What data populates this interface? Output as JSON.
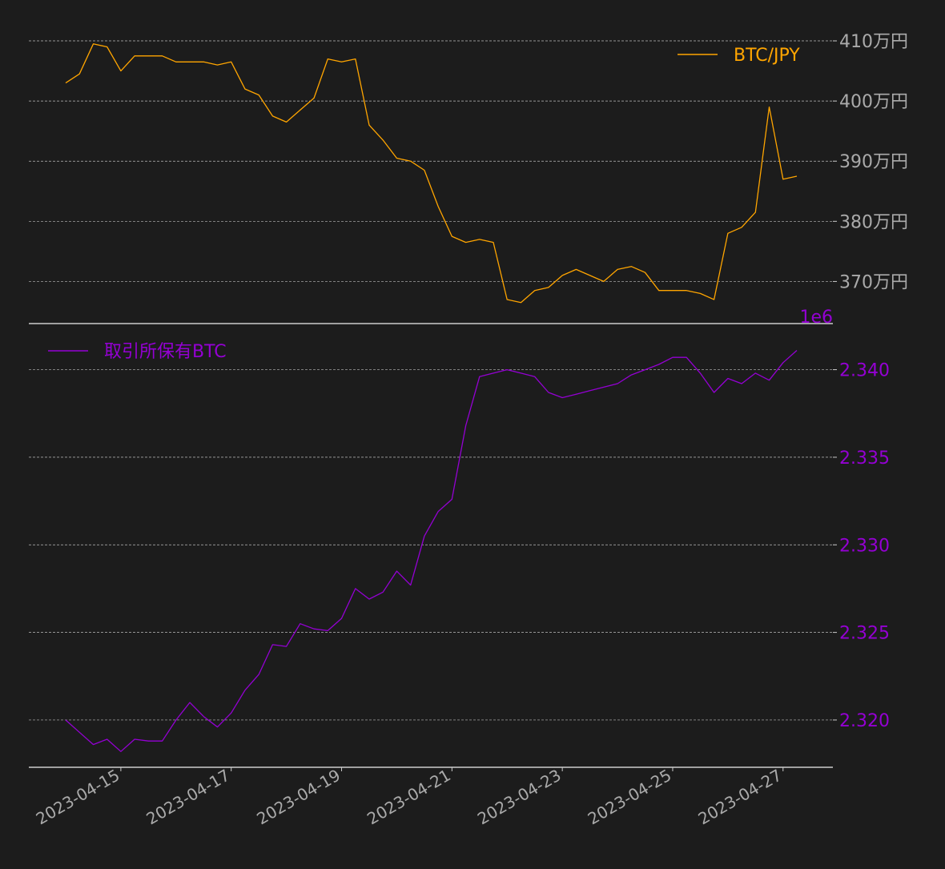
{
  "colors": {
    "background": "#1c1c1c",
    "btc_price": "#ffa500",
    "btc_holdings": "#9400d3",
    "grid": "#bbbbbb",
    "axis": "#cccccc",
    "tick_text": "#aaaaaa"
  },
  "chart_data": [
    {
      "type": "line",
      "legend": {
        "label": "BTC/JPY",
        "position": "top-right"
      },
      "grid": true,
      "y_axis_side": "right",
      "ylim": [
        3630000,
        4120000
      ],
      "yticks": [
        {
          "value": 4100000,
          "label": "410万円"
        },
        {
          "value": 4000000,
          "label": "400万円"
        },
        {
          "value": 3900000,
          "label": "390万円"
        },
        {
          "value": 3800000,
          "label": "380万円"
        },
        {
          "value": 3700000,
          "label": "370万円"
        }
      ],
      "series": [
        {
          "name": "BTC/JPY",
          "x": [
            "2023-04-14 00:00",
            "2023-04-14 06:00",
            "2023-04-14 12:00",
            "2023-04-14 18:00",
            "2023-04-15 00:00",
            "2023-04-15 06:00",
            "2023-04-15 12:00",
            "2023-04-15 18:00",
            "2023-04-16 00:00",
            "2023-04-16 06:00",
            "2023-04-16 12:00",
            "2023-04-16 18:00",
            "2023-04-17 00:00",
            "2023-04-17 06:00",
            "2023-04-17 12:00",
            "2023-04-17 18:00",
            "2023-04-18 00:00",
            "2023-04-18 06:00",
            "2023-04-18 12:00",
            "2023-04-18 18:00",
            "2023-04-19 00:00",
            "2023-04-19 06:00",
            "2023-04-19 12:00",
            "2023-04-19 18:00",
            "2023-04-20 00:00",
            "2023-04-20 06:00",
            "2023-04-20 12:00",
            "2023-04-20 18:00",
            "2023-04-21 00:00",
            "2023-04-21 06:00",
            "2023-04-21 12:00",
            "2023-04-21 18:00",
            "2023-04-22 00:00",
            "2023-04-22 06:00",
            "2023-04-22 12:00",
            "2023-04-22 18:00",
            "2023-04-23 00:00",
            "2023-04-23 06:00",
            "2023-04-23 12:00",
            "2023-04-23 18:00",
            "2023-04-24 00:00",
            "2023-04-24 06:00",
            "2023-04-24 12:00",
            "2023-04-24 18:00",
            "2023-04-25 00:00",
            "2023-04-25 06:00",
            "2023-04-25 12:00",
            "2023-04-25 18:00",
            "2023-04-26 00:00",
            "2023-04-26 06:00",
            "2023-04-26 12:00",
            "2023-04-26 18:00",
            "2023-04-27 00:00",
            "2023-04-27 06:00"
          ],
          "values": [
            4030000,
            4045000,
            4095000,
            4090000,
            4050000,
            4075000,
            4075000,
            4075000,
            4065000,
            4065000,
            4065000,
            4060000,
            4065000,
            4020000,
            4010000,
            3975000,
            3965000,
            3985000,
            4005000,
            4070000,
            4065000,
            4070000,
            3960000,
            3935000,
            3905000,
            3900000,
            3885000,
            3825000,
            3775000,
            3765000,
            3770000,
            3765000,
            3670000,
            3665000,
            3685000,
            3690000,
            3710000,
            3720000,
            3710000,
            3700000,
            3720000,
            3725000,
            3715000,
            3685000,
            3685000,
            3685000,
            3680000,
            3670000,
            3780000,
            3790000,
            3815000,
            3990000,
            3870000,
            3875000
          ]
        }
      ]
    },
    {
      "type": "line",
      "legend": {
        "label": "取引所保有BTC",
        "position": "top-left"
      },
      "grid": true,
      "y_axis_side": "right",
      "offset_label": "1e6",
      "ylim": [
        2317300,
        2341900
      ],
      "yticks": [
        {
          "value": 2340000,
          "label": "2.340"
        },
        {
          "value": 2335000,
          "label": "2.335"
        },
        {
          "value": 2330000,
          "label": "2.330"
        },
        {
          "value": 2325000,
          "label": "2.325"
        },
        {
          "value": 2320000,
          "label": "2.320"
        }
      ],
      "xticks": [
        "2023-04-15",
        "2023-04-17",
        "2023-04-19",
        "2023-04-21",
        "2023-04-23",
        "2023-04-25",
        "2023-04-27"
      ],
      "series": [
        {
          "name": "取引所保有BTC",
          "x": [
            "2023-04-14 00:00",
            "2023-04-14 06:00",
            "2023-04-14 12:00",
            "2023-04-14 18:00",
            "2023-04-15 00:00",
            "2023-04-15 06:00",
            "2023-04-15 12:00",
            "2023-04-15 18:00",
            "2023-04-16 00:00",
            "2023-04-16 06:00",
            "2023-04-16 12:00",
            "2023-04-16 18:00",
            "2023-04-17 00:00",
            "2023-04-17 06:00",
            "2023-04-17 12:00",
            "2023-04-17 18:00",
            "2023-04-18 00:00",
            "2023-04-18 06:00",
            "2023-04-18 12:00",
            "2023-04-18 18:00",
            "2023-04-19 00:00",
            "2023-04-19 06:00",
            "2023-04-19 12:00",
            "2023-04-19 18:00",
            "2023-04-20 00:00",
            "2023-04-20 06:00",
            "2023-04-20 12:00",
            "2023-04-20 18:00",
            "2023-04-21 00:00",
            "2023-04-21 06:00",
            "2023-04-21 12:00",
            "2023-04-21 18:00",
            "2023-04-22 00:00",
            "2023-04-22 06:00",
            "2023-04-22 12:00",
            "2023-04-22 18:00",
            "2023-04-23 00:00",
            "2023-04-23 06:00",
            "2023-04-23 12:00",
            "2023-04-23 18:00",
            "2023-04-24 00:00",
            "2023-04-24 06:00",
            "2023-04-24 12:00",
            "2023-04-24 18:00",
            "2023-04-25 00:00",
            "2023-04-25 06:00",
            "2023-04-25 12:00",
            "2023-04-25 18:00",
            "2023-04-26 00:00",
            "2023-04-26 06:00",
            "2023-04-26 12:00",
            "2023-04-26 18:00",
            "2023-04-27 00:00",
            "2023-04-27 06:00"
          ],
          "values": [
            2320000,
            2319300,
            2318600,
            2318900,
            2318200,
            2318900,
            2318800,
            2318800,
            2320000,
            2321000,
            2320200,
            2319600,
            2320400,
            2321700,
            2322600,
            2324300,
            2324200,
            2325500,
            2325200,
            2325100,
            2325800,
            2327500,
            2326900,
            2327300,
            2328500,
            2327700,
            2330500,
            2331900,
            2332600,
            2336800,
            2339600,
            2339800,
            2340000,
            2339800,
            2339600,
            2338700,
            2338400,
            2338600,
            2338800,
            2339000,
            2339200,
            2339700,
            2340000,
            2340300,
            2340700,
            2340700,
            2339800,
            2338700,
            2339500,
            2339200,
            2339800,
            2339400,
            2340400,
            2341100
          ]
        }
      ]
    }
  ]
}
